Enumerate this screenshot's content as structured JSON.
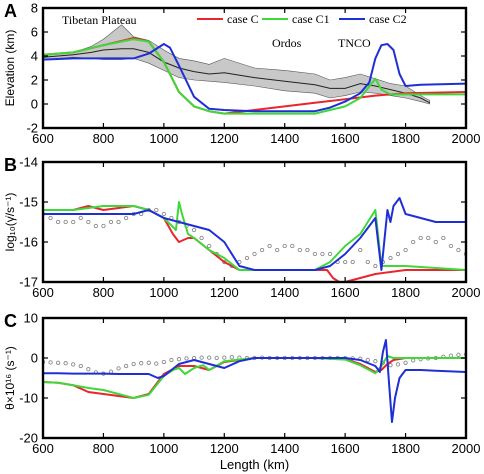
{
  "chart_data": [
    {
      "panel_label": "A",
      "type": "line",
      "xlabel": "",
      "ylabel": "Elevation (km)",
      "xlim": [
        600,
        2000
      ],
      "ylim": [
        -2,
        8
      ],
      "xticks": [
        600,
        800,
        1000,
        1200,
        1400,
        1600,
        1800,
        2000
      ],
      "yticks": [
        -2,
        0,
        2,
        4,
        6,
        8
      ],
      "legend_position": "top-right",
      "annotations": [
        "Tibetan Plateau",
        "Ordos",
        "TNCO"
      ],
      "band": {
        "x": [
          600,
          700,
          760,
          800,
          860,
          900,
          950,
          1000,
          1050,
          1100,
          1150,
          1200,
          1300,
          1400,
          1500,
          1550,
          1600,
          1650,
          1700,
          1750,
          1800,
          1850,
          1880
        ],
        "upper": [
          4.1,
          4.3,
          4.8,
          5.4,
          6.6,
          5.6,
          5.3,
          4.5,
          3.8,
          3.6,
          3.3,
          3.8,
          3.0,
          2.8,
          2.5,
          2.0,
          2.2,
          2.5,
          2.1,
          1.7,
          1.5,
          0.7,
          0.3
        ],
        "lower": [
          3.7,
          3.9,
          3.8,
          3.7,
          3.7,
          3.8,
          3.4,
          2.8,
          2.2,
          2.0,
          1.9,
          1.8,
          1.5,
          1.1,
          0.9,
          0.5,
          0.7,
          1.0,
          0.9,
          0.7,
          0.5,
          0.2,
          0.0
        ]
      },
      "mean_line": {
        "x": [
          600,
          700,
          760,
          800,
          860,
          900,
          950,
          1000,
          1050,
          1100,
          1150,
          1200,
          1300,
          1400,
          1500,
          1550,
          1600,
          1650,
          1700,
          1750,
          1800,
          1850,
          1880
        ],
        "y": [
          3.9,
          4.1,
          4.3,
          4.5,
          4.6,
          4.6,
          4.3,
          3.5,
          3.0,
          2.7,
          2.5,
          2.6,
          2.2,
          1.9,
          1.6,
          1.3,
          1.3,
          1.7,
          1.5,
          1.2,
          0.9,
          0.5,
          0.1
        ]
      },
      "series": [
        {
          "name": "case C",
          "color": "#e8262c",
          "x": [
            600,
            700,
            800,
            900,
            950,
            1000,
            1050,
            1100,
            1150,
            1200,
            1300,
            1400,
            1500,
            1600,
            1700,
            1800,
            2000
          ],
          "y": [
            4.1,
            4.3,
            4.9,
            5.5,
            5.2,
            3.5,
            1.0,
            -0.2,
            -0.6,
            -0.8,
            -0.5,
            -0.2,
            0.1,
            0.4,
            0.7,
            0.9,
            1.0
          ]
        },
        {
          "name": "case C1",
          "color": "#3fd83a",
          "x": [
            600,
            700,
            800,
            900,
            950,
            1000,
            1050,
            1100,
            1150,
            1200,
            1300,
            1400,
            1500,
            1600,
            1650,
            1700,
            1720,
            1750,
            1800,
            2000
          ],
          "y": [
            4.1,
            4.3,
            4.9,
            5.4,
            5.2,
            3.5,
            1.0,
            -0.2,
            -0.6,
            -0.8,
            -0.8,
            -0.8,
            -0.8,
            -0.2,
            0.5,
            2.1,
            1.2,
            0.8,
            0.8,
            0.8
          ]
        },
        {
          "name": "case C2",
          "color": "#1f2fd6",
          "x": [
            600,
            700,
            800,
            900,
            950,
            1000,
            1020,
            1050,
            1100,
            1150,
            1200,
            1300,
            1400,
            1500,
            1550,
            1600,
            1650,
            1680,
            1700,
            1720,
            1740,
            1760,
            1780,
            1800,
            1850,
            2000
          ],
          "y": [
            3.7,
            3.8,
            3.8,
            3.8,
            4.2,
            5.0,
            4.7,
            3.2,
            0.6,
            -0.4,
            -0.5,
            -0.6,
            -0.6,
            -0.6,
            -0.3,
            0.2,
            0.9,
            1.8,
            3.8,
            4.9,
            5.0,
            4.5,
            2.5,
            1.5,
            1.6,
            1.7
          ]
        }
      ]
    },
    {
      "panel_label": "B",
      "type": "line",
      "xlabel": "",
      "ylabel": "log₁₀(γ̇/s⁻¹)",
      "xlim": [
        600,
        2000
      ],
      "ylim": [
        -17,
        -14
      ],
      "xticks": [
        600,
        800,
        1000,
        1200,
        1400,
        1600,
        1800,
        2000
      ],
      "yticks": [
        -17,
        -16,
        -15,
        -14
      ],
      "scatter": {
        "x": [
          600,
          625,
          650,
          675,
          700,
          725,
          750,
          775,
          800,
          825,
          850,
          875,
          900,
          925,
          950,
          975,
          1000,
          1025,
          1050,
          1075,
          1100,
          1125,
          1150,
          1175,
          1200,
          1225,
          1250,
          1275,
          1300,
          1325,
          1350,
          1375,
          1400,
          1425,
          1450,
          1475,
          1500,
          1525,
          1550,
          1575,
          1600,
          1625,
          1650,
          1675,
          1700,
          1725,
          1750,
          1775,
          1800,
          1825,
          1850,
          1875,
          1900,
          1925,
          1950,
          1975,
          2000
        ],
        "y": [
          -15.3,
          -15.4,
          -15.5,
          -15.5,
          -15.5,
          -15.4,
          -15.5,
          -15.6,
          -15.6,
          -15.5,
          -15.5,
          -15.4,
          -15.3,
          -15.3,
          -15.2,
          -15.2,
          -15.3,
          -15.4,
          -15.5,
          -15.6,
          -15.7,
          -15.9,
          -16.1,
          -16.3,
          -16.5,
          -16.6,
          -16.5,
          -16.4,
          -16.3,
          -16.2,
          -16.1,
          -16.2,
          -16.1,
          -16.1,
          -16.2,
          -16.2,
          -16.3,
          -16.3,
          -16.3,
          -16.5,
          -16.5,
          -16.5,
          -16.2,
          -16.5,
          -16.6,
          -16.5,
          -16.4,
          -16.3,
          -16.2,
          -16.0,
          -15.9,
          -15.9,
          -16.0,
          -15.9,
          -16.1,
          -16.2,
          -16.3
        ]
      },
      "series": [
        {
          "name": "case C",
          "color": "#e8262c",
          "x": [
            600,
            700,
            750,
            800,
            900,
            950,
            1000,
            1030,
            1050,
            1080,
            1100,
            1150,
            1200,
            1250,
            1300,
            1400,
            1500,
            1540,
            1560,
            1580,
            1600,
            1700,
            1800,
            2000
          ],
          "y": [
            -15.2,
            -15.2,
            -15.1,
            -15.2,
            -15.1,
            -15.2,
            -15.4,
            -15.8,
            -16.0,
            -15.9,
            -15.9,
            -16.2,
            -16.5,
            -16.7,
            -16.7,
            -16.7,
            -16.7,
            -16.7,
            -16.9,
            -17.0,
            -17.0,
            -16.8,
            -16.7,
            -16.7
          ]
        },
        {
          "name": "case C1",
          "color": "#3fd83a",
          "x": [
            600,
            700,
            800,
            900,
            950,
            1000,
            1040,
            1050,
            1060,
            1080,
            1100,
            1150,
            1200,
            1250,
            1300,
            1400,
            1500,
            1550,
            1600,
            1650,
            1700,
            1720,
            1750,
            1800,
            2000
          ],
          "y": [
            -15.2,
            -15.2,
            -15.1,
            -15.1,
            -15.2,
            -15.4,
            -15.7,
            -15.0,
            -15.3,
            -15.8,
            -15.9,
            -16.2,
            -16.4,
            -16.7,
            -16.7,
            -16.7,
            -16.7,
            -16.5,
            -16.1,
            -15.8,
            -15.2,
            -16.6,
            -16.6,
            -16.6,
            -16.7
          ]
        },
        {
          "name": "case C2",
          "color": "#1f2fd6",
          "x": [
            600,
            700,
            800,
            900,
            950,
            1000,
            1050,
            1100,
            1150,
            1200,
            1250,
            1300,
            1400,
            1500,
            1550,
            1600,
            1650,
            1700,
            1720,
            1740,
            1750,
            1760,
            1780,
            1800,
            1900,
            2000
          ],
          "y": [
            -15.3,
            -15.3,
            -15.3,
            -15.3,
            -15.2,
            -15.4,
            -15.5,
            -15.6,
            -15.7,
            -16.0,
            -16.6,
            -16.7,
            -16.7,
            -16.7,
            -16.6,
            -16.3,
            -15.9,
            -15.4,
            -16.7,
            -15.2,
            -15.5,
            -15.1,
            -14.9,
            -15.3,
            -15.5,
            -15.5
          ]
        }
      ]
    },
    {
      "panel_label": "C",
      "type": "line",
      "xlabel": "Length (km)",
      "ylabel": "θ×10¹⁶ (s⁻¹)",
      "xlim": [
        600,
        2000
      ],
      "ylim": [
        -20,
        10
      ],
      "xticks": [
        600,
        800,
        1000,
        1200,
        1400,
        1600,
        1800,
        2000
      ],
      "yticks": [
        -20,
        -10,
        0,
        10
      ],
      "scatter": {
        "x": [
          600,
          625,
          650,
          675,
          700,
          725,
          750,
          775,
          800,
          825,
          850,
          875,
          900,
          925,
          950,
          975,
          1000,
          1025,
          1050,
          1075,
          1100,
          1125,
          1150,
          1175,
          1200,
          1225,
          1250,
          1275,
          1300,
          1325,
          1350,
          1375,
          1400,
          1425,
          1450,
          1475,
          1500,
          1525,
          1550,
          1575,
          1600,
          1625,
          1650,
          1675,
          1700,
          1725,
          1750,
          1775,
          1800,
          1825,
          1850,
          1875,
          1900,
          1925,
          1950,
          1975,
          2000
        ],
        "y": [
          -1.0,
          -1.1,
          -1.2,
          -1.3,
          -1.6,
          -2.0,
          -2.8,
          -3.6,
          -3.9,
          -3.4,
          -2.6,
          -2.0,
          -1.5,
          -1.3,
          -1.2,
          -1.4,
          -1.0,
          -0.5,
          -0.3,
          -0.1,
          0.0,
          0.1,
          0.1,
          0.0,
          0.1,
          0.2,
          0.1,
          0.0,
          0.0,
          0.1,
          0.0,
          0.0,
          0.0,
          0.0,
          0.0,
          0.0,
          0.0,
          0.0,
          0.0,
          0.0,
          0.0,
          -0.1,
          -0.2,
          -0.5,
          -0.8,
          -1.2,
          -1.8,
          -1.6,
          -1.2,
          -0.6,
          -0.3,
          -0.1,
          0.0,
          0.3,
          0.6,
          0.8,
          0.9
        ]
      },
      "series": [
        {
          "name": "case C",
          "color": "#e8262c",
          "x": [
            600,
            650,
            700,
            750,
            800,
            850,
            900,
            950,
            1000,
            1050,
            1100,
            1150,
            1200,
            1300,
            1500,
            1600,
            1650,
            1700,
            1720,
            1740,
            1760,
            1800,
            2000
          ],
          "y": [
            -6.0,
            -6.2,
            -6.8,
            -8.5,
            -9.0,
            -9.5,
            -10.0,
            -9.0,
            -4.0,
            -2.0,
            -2.0,
            -3.0,
            -1.0,
            0.0,
            0.0,
            -0.3,
            -1.5,
            -3.5,
            -3.0,
            -1.5,
            -0.5,
            0.0,
            0.0
          ]
        },
        {
          "name": "case C1",
          "color": "#3fd83a",
          "x": [
            600,
            650,
            700,
            750,
            800,
            850,
            900,
            950,
            1000,
            1030,
            1050,
            1070,
            1100,
            1130,
            1150,
            1200,
            1300,
            1500,
            1600,
            1650,
            1700,
            1720,
            1740,
            1760,
            1800,
            2000
          ],
          "y": [
            -6.0,
            -6.2,
            -6.8,
            -7.5,
            -8.0,
            -9.0,
            -10.0,
            -9.2,
            -4.5,
            -3.0,
            -2.5,
            -4.0,
            -2.5,
            -1.8,
            -3.0,
            -0.8,
            0.0,
            0.0,
            -0.4,
            -1.8,
            -3.8,
            -2.0,
            0.5,
            0.0,
            0.0,
            0.0
          ]
        },
        {
          "name": "case C2",
          "color": "#1f2fd6",
          "x": [
            600,
            650,
            700,
            750,
            800,
            850,
            900,
            950,
            980,
            1000,
            1050,
            1100,
            1150,
            1200,
            1250,
            1300,
            1400,
            1500,
            1600,
            1650,
            1700,
            1715,
            1725,
            1735,
            1745,
            1755,
            1765,
            1780,
            1800,
            1850,
            1900,
            2000
          ],
          "y": [
            -3.8,
            -3.8,
            -3.9,
            -3.9,
            -3.9,
            -4.0,
            -4.0,
            -4.0,
            -5.0,
            -4.5,
            -1.5,
            -0.5,
            -1.5,
            -2.5,
            -0.8,
            0.0,
            0.0,
            0.0,
            0.0,
            -0.5,
            -2.0,
            -3.5,
            1.5,
            4.5,
            -6.0,
            -16.0,
            -10.0,
            -5.0,
            -3.0,
            -3.0,
            -3.2,
            -3.5
          ]
        }
      ]
    }
  ]
}
